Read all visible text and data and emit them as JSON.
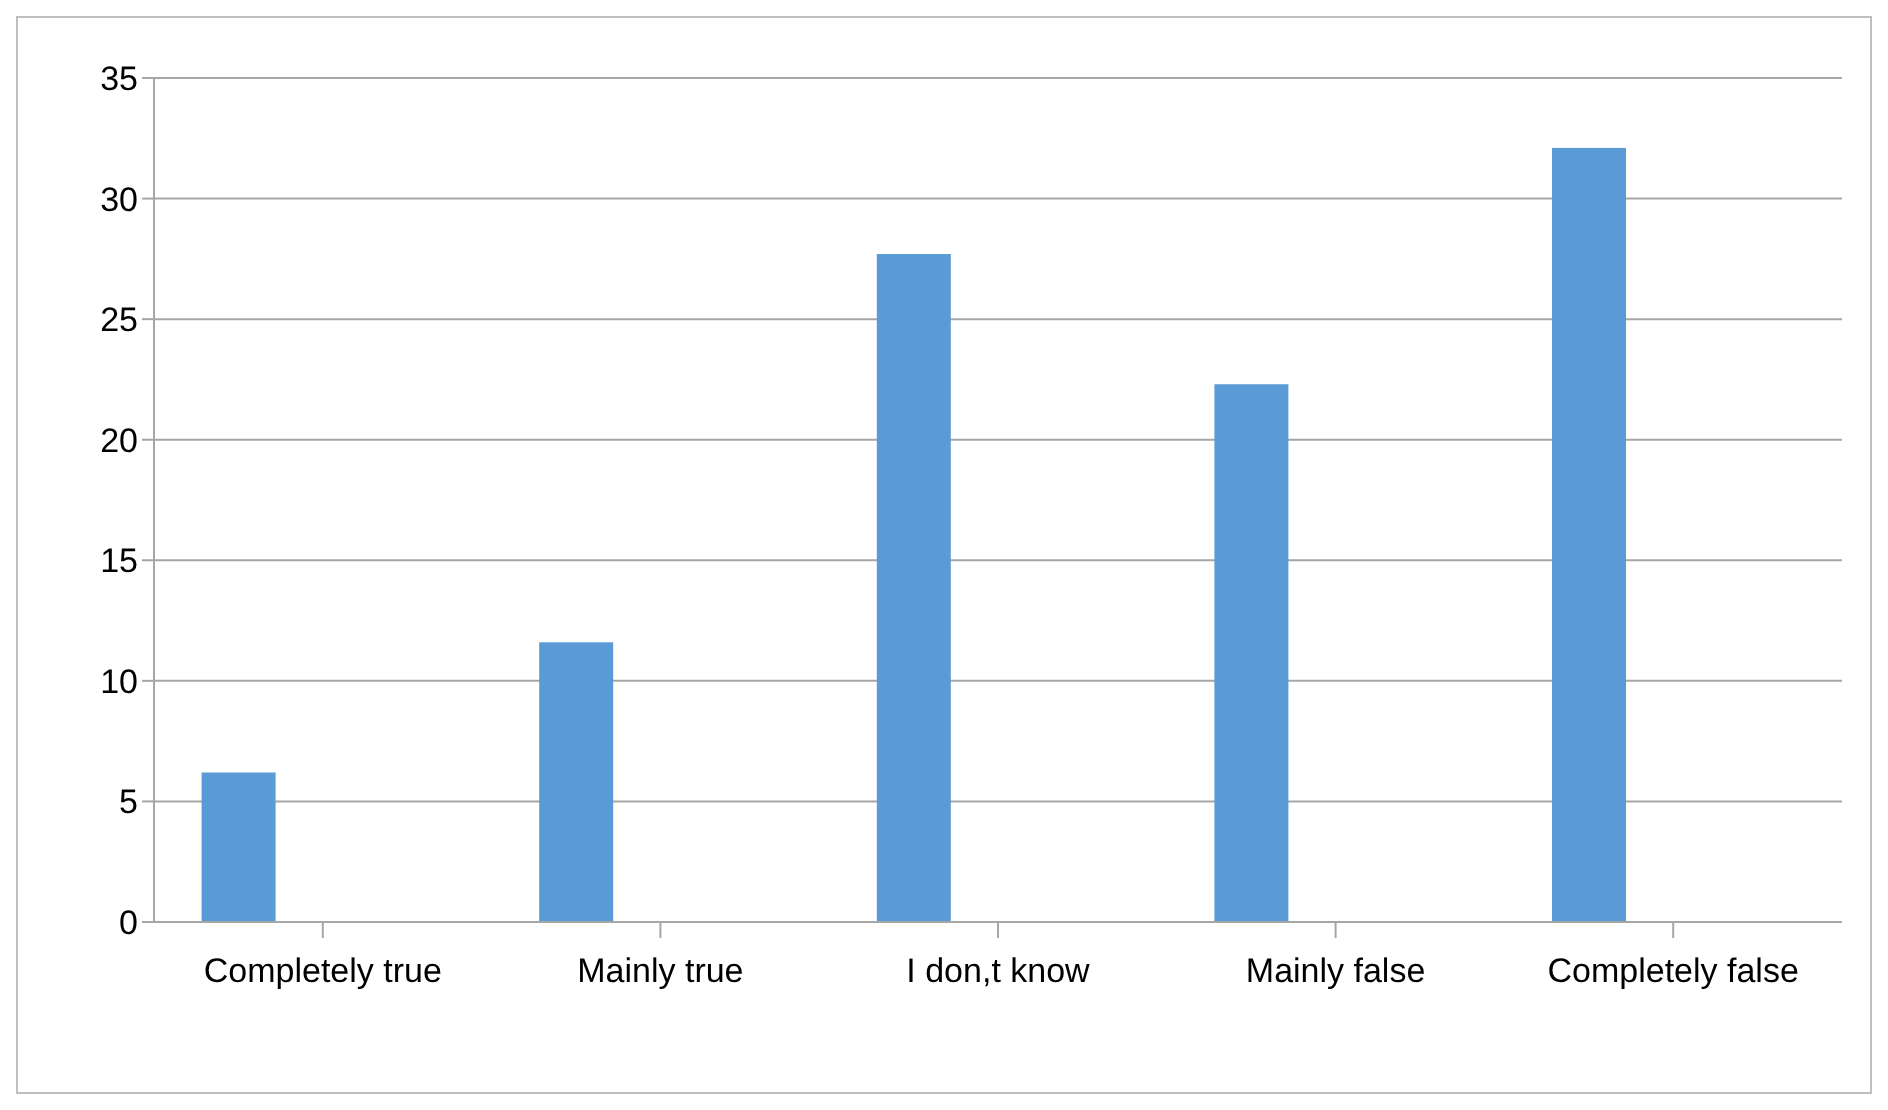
{
  "chart_data": {
    "type": "bar",
    "categories": [
      "Completely true",
      "Mainly true",
      "I don,t know",
      "Mainly false",
      "Completely false"
    ],
    "values": [
      6.2,
      11.6,
      27.7,
      22.3,
      32.1
    ],
    "color": "#5b9bd5",
    "ylim": [
      0,
      35
    ],
    "yticks": [
      0,
      5,
      10,
      15,
      20,
      25,
      30,
      35
    ],
    "grid": "y"
  }
}
